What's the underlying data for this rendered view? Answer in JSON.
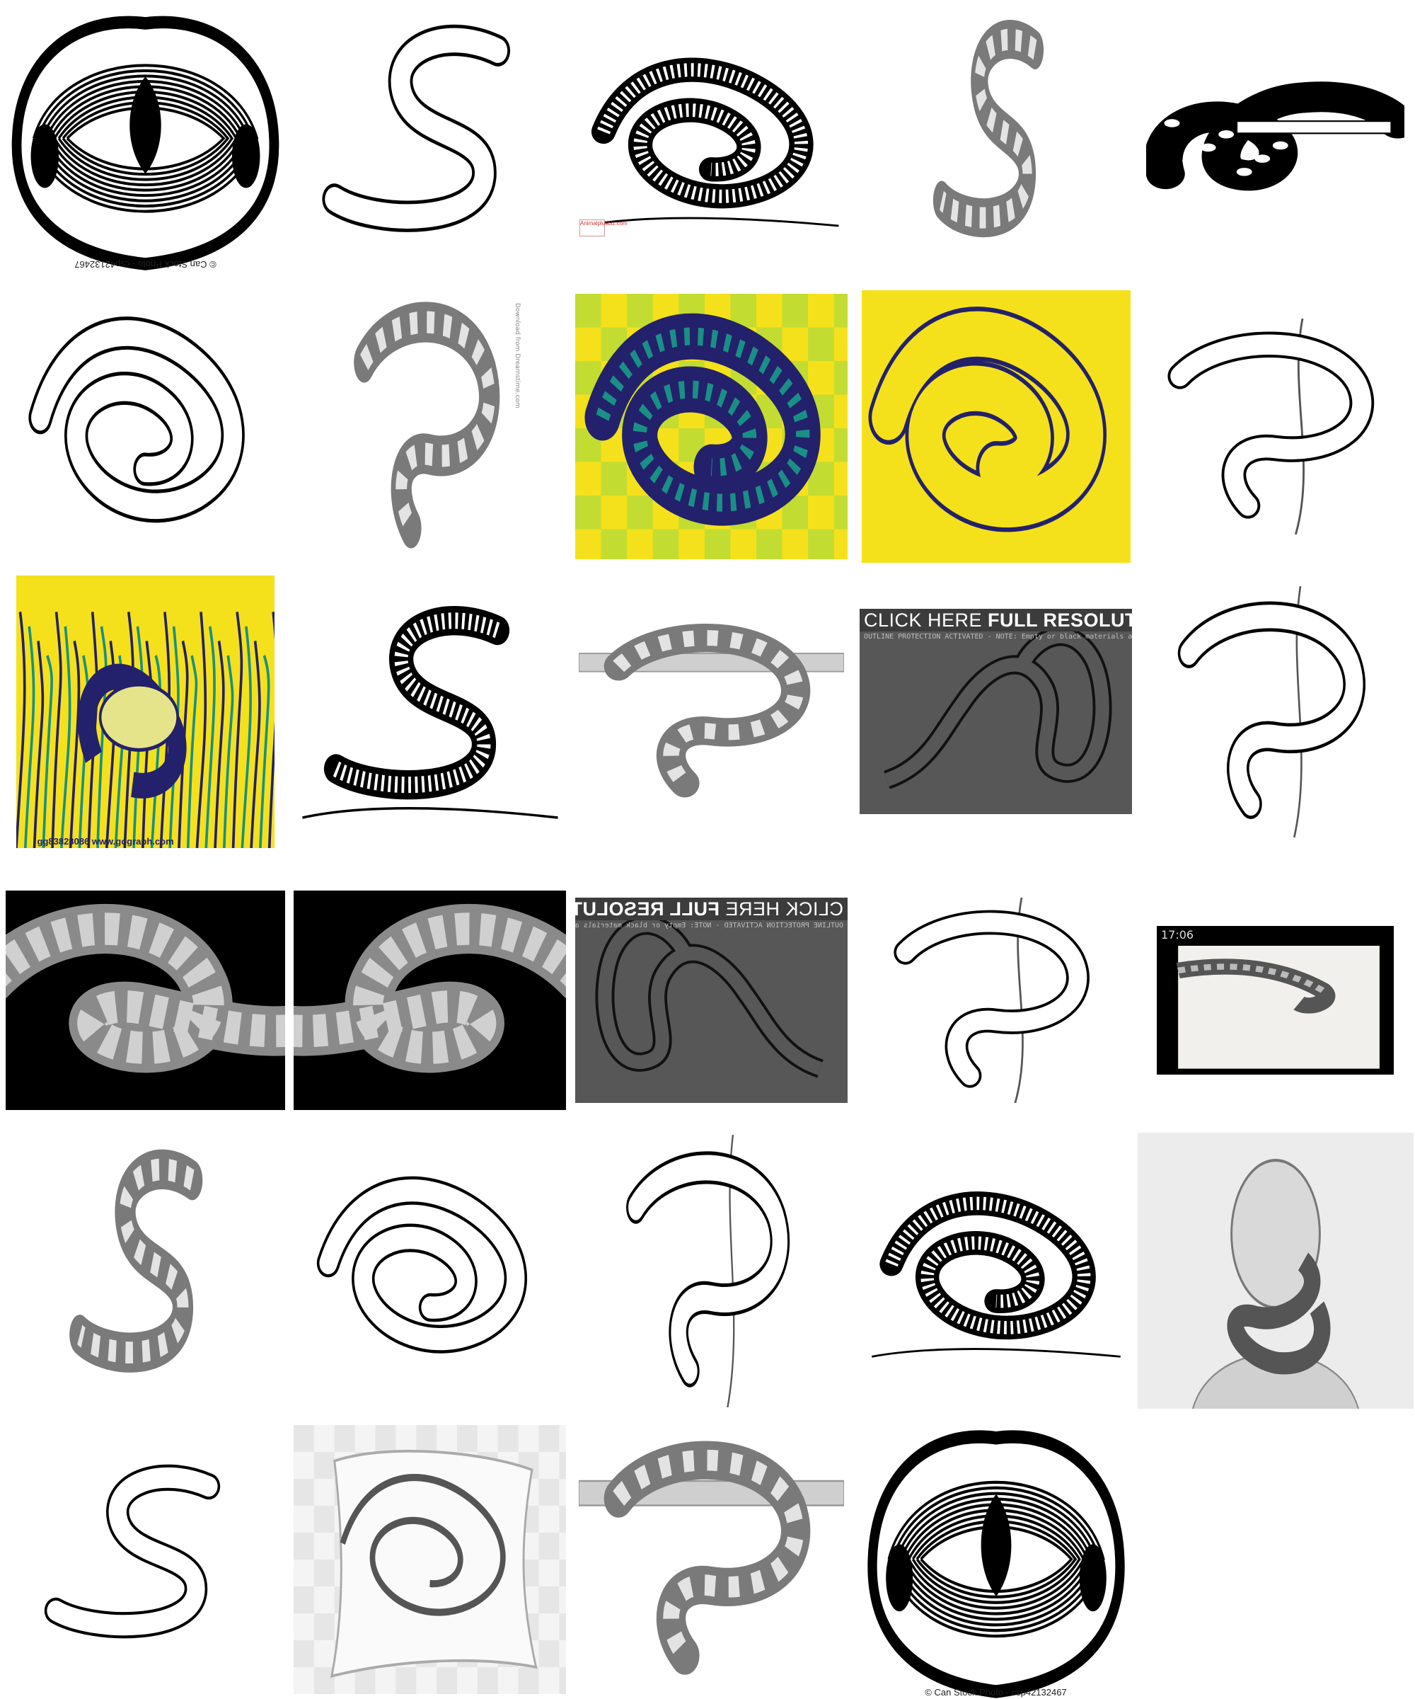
{
  "gallery": {
    "colors": {
      "yellow": "#f5e11b",
      "navy": "#23216b",
      "teal": "#1a8f86",
      "lime": "#c2dc32",
      "grey_panel": "#575757",
      "black": "#000000"
    },
    "tiles": [
      {
        "kind": "mandala-head",
        "icon": "snake-head-mandala",
        "caption": "© Can Stock Photo - csp42132467",
        "caption_flipped": true
      },
      {
        "kind": "cartoon-snake",
        "icon": "spotted-snake-outline"
      },
      {
        "kind": "engraving",
        "icon": "coiled-snake-engraving",
        "stamp": "Animalplusbiz.com"
      },
      {
        "kind": "pencil-sheet",
        "icon": "snake-study-sheet"
      },
      {
        "kind": "knot-tattoo",
        "icon": "knotted-boa-tattoo"
      },
      {
        "kind": "coloring",
        "icon": "coiled-boa-outline"
      },
      {
        "kind": "pencil",
        "icon": "boa-pencil-drawing",
        "side_text": "Download from Dreamstime.com"
      },
      {
        "kind": "checker-pop",
        "icon": "striking-snake-pop-art"
      },
      {
        "kind": "yellow-pop",
        "icon": "boa-pop-outline"
      },
      {
        "kind": "tree-outline",
        "icon": "tree-boa-outline"
      },
      {
        "kind": "jungle-print",
        "icon": "boa-attacking-deer",
        "caption": "gg83828086  www.gograph.com"
      },
      {
        "kind": "engraving-s",
        "icon": "s-curve-snake-engraving"
      },
      {
        "kind": "branch-boa",
        "icon": "boa-on-branch-pencil"
      },
      {
        "kind": "banner-grey",
        "icon": "boa-outline-dark",
        "banner_normal": "CLICK HERE ",
        "banner_bold": "FULL RESOLUTION",
        "banner_sub": "OUTLINE PROTECTION ACTIVATED - NOTE: Empty or black materials are not Allowed"
      },
      {
        "kind": "hanging-outline",
        "icon": "hanging-boa-outline"
      },
      {
        "kind": "black-photo",
        "icon": "python-on-black"
      },
      {
        "kind": "black-photo-mirror",
        "icon": "python-on-black-mirrored"
      },
      {
        "kind": "banner-grey-mirror",
        "icon": "boa-outline-dark-mirrored",
        "banner_normal": "CLICK HERE ",
        "banner_bold": "FULL RESOLUTION",
        "banner_sub": "OUTLINE PROTECTION ACTIVATED - NOTE: Empty or black materials are not Allowed"
      },
      {
        "kind": "tree-outline-2",
        "icon": "tree-boa-outline-2"
      },
      {
        "kind": "sketchbook",
        "icon": "snake-sketchbook-photo",
        "status": "17:06"
      },
      {
        "kind": "pencil-sheet-2",
        "icon": "snake-study-sheet-2"
      },
      {
        "kind": "coloring-2",
        "icon": "boa-coloring-page"
      },
      {
        "kind": "hanging-outline-2",
        "icon": "hanging-boa-outline-2"
      },
      {
        "kind": "engraving-branch",
        "icon": "boa-on-log-engraving"
      },
      {
        "kind": "woman-snake",
        "icon": "woman-with-boa-pencil"
      },
      {
        "kind": "cartoon-2",
        "icon": "python-coloring-outline"
      },
      {
        "kind": "pillow",
        "icon": "snake-pillow-product"
      },
      {
        "kind": "branch-boa-2",
        "icon": "boa-on-branch-pencil-2"
      },
      {
        "kind": "mandala-head-2",
        "icon": "snake-head-mandala-2",
        "caption": "© Can Stock Photo - csp42132467"
      }
    ]
  }
}
